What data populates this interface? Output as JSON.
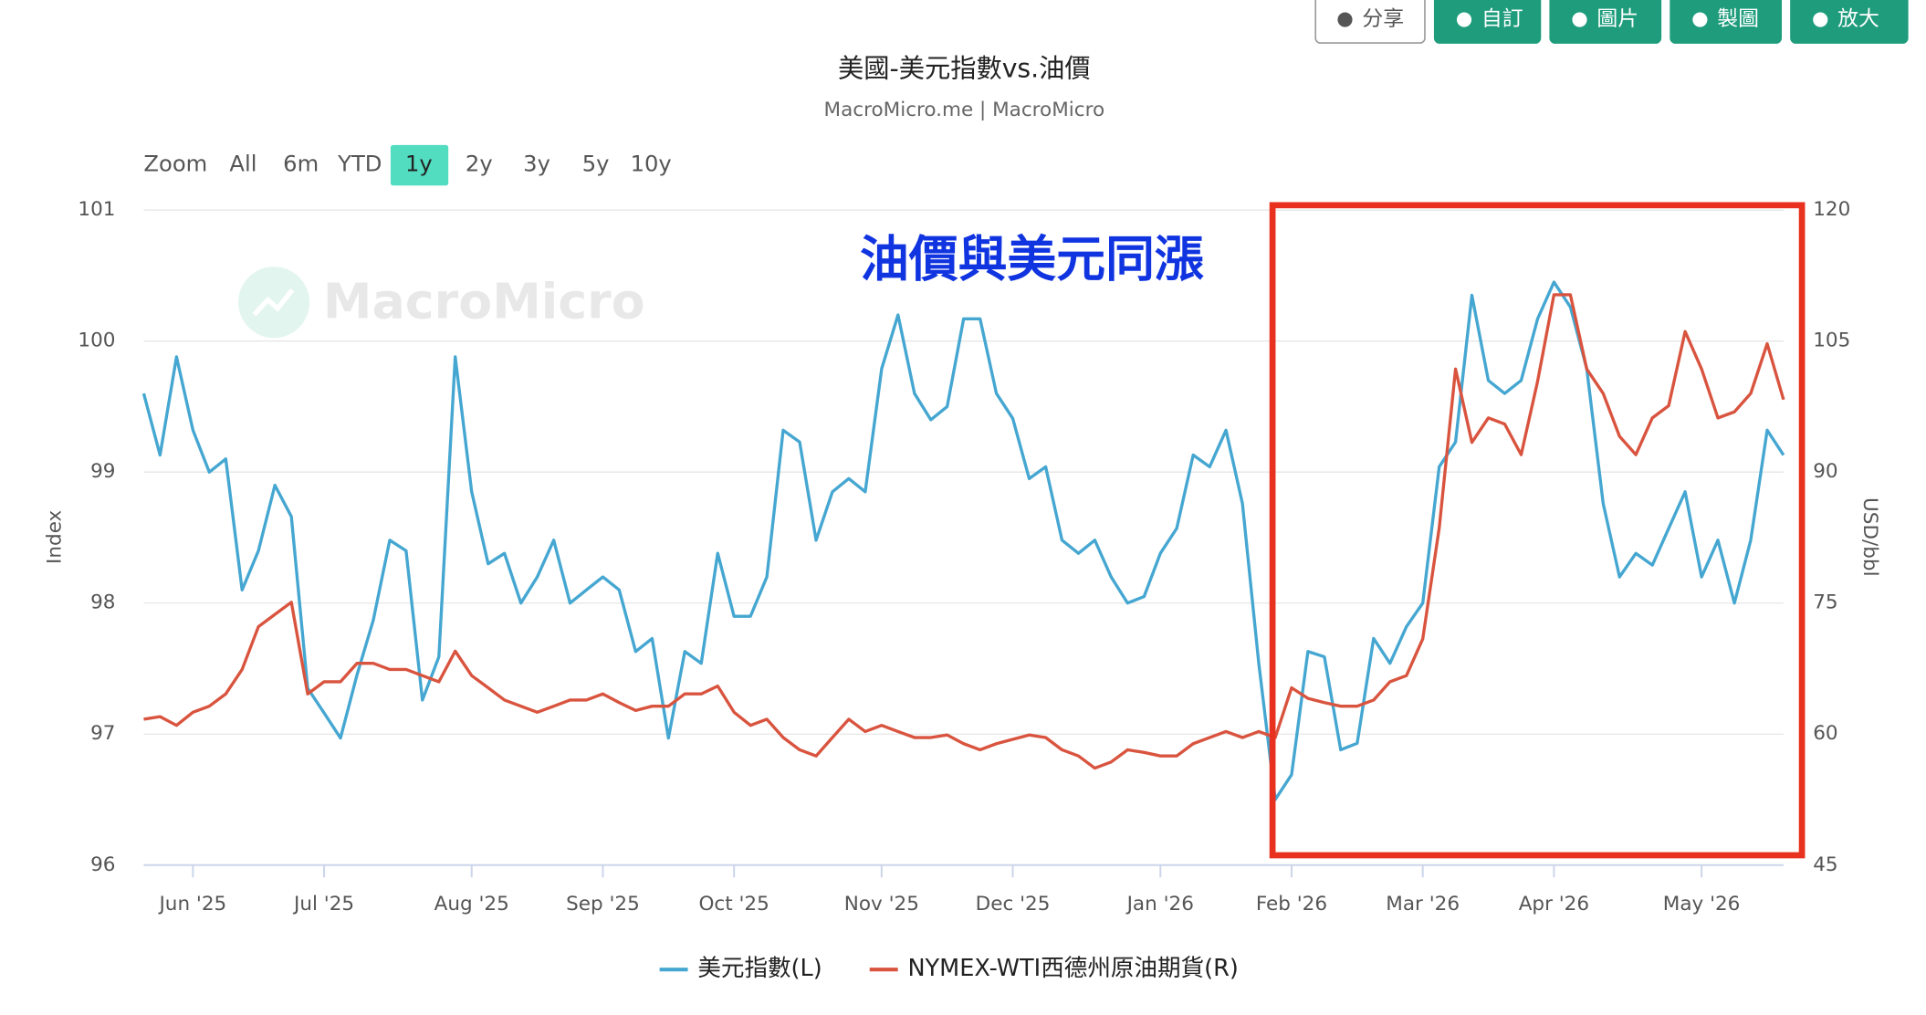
{
  "toolbar": {
    "buttons": [
      "分享",
      "自訂",
      "圖片",
      "製圖",
      "放大"
    ]
  },
  "range_selector": {
    "label": "Zoom",
    "options": [
      "All",
      "6m",
      "YTD",
      "1y",
      "2y",
      "3y",
      "5y",
      "10y"
    ],
    "selected": 3
  },
  "chart_data": {
    "type": "line",
    "title": "美國-美元指數vs.油價",
    "subtitle": "MacroMicro.me | MacroMicro",
    "watermark": "MacroMicro",
    "annotation": "油價與美元同漲",
    "ylabel": "Index",
    "y2label": "USD/bbl",
    "ylim": [
      96,
      101
    ],
    "yticks": [
      96,
      97,
      98,
      99,
      100,
      101
    ],
    "y2lim": [
      45,
      120
    ],
    "y2ticks": [
      45,
      60,
      75,
      90,
      105,
      120
    ],
    "grid": true,
    "legend": "bottom",
    "x": [
      null,
      null,
      null,
      "Jun '25",
      null,
      null,
      null,
      null,
      null,
      null,
      null,
      "Jul '25",
      null,
      null,
      null,
      null,
      null,
      null,
      null,
      null,
      "Aug '25",
      null,
      null,
      null,
      null,
      null,
      null,
      null,
      "Sep '25",
      null,
      null,
      null,
      null,
      null,
      null,
      null,
      "Oct '25",
      null,
      null,
      null,
      null,
      null,
      null,
      null,
      null,
      "Nov '25",
      null,
      null,
      null,
      null,
      null,
      null,
      null,
      "Dec '25",
      null,
      null,
      null,
      null,
      null,
      null,
      null,
      null,
      "Jan '26",
      null,
      null,
      null,
      null,
      null,
      null,
      null,
      "Feb '26",
      null,
      null,
      null,
      null,
      null,
      null,
      null,
      "Mar '26",
      null,
      null,
      null,
      null,
      null,
      null,
      null,
      "Apr '26",
      null,
      null,
      null,
      null,
      null,
      null,
      null,
      null,
      "May '26",
      null,
      null,
      null,
      null,
      null
    ],
    "series": [
      {
        "name": "美元指數(L)",
        "color": "#45a7d1",
        "axis": "y",
        "values": [
          99.6,
          99.13,
          99.88,
          99.32,
          99.0,
          99.1,
          98.1,
          98.4,
          98.9,
          98.66,
          97.35,
          97.16,
          96.97,
          97.45,
          97.87,
          98.48,
          98.4,
          97.26,
          97.59,
          99.88,
          98.85,
          98.3,
          98.38,
          98.0,
          98.2,
          98.48,
          98.0,
          98.1,
          98.2,
          98.1,
          97.63,
          97.73,
          96.97,
          97.63,
          97.54,
          98.38,
          97.9,
          97.9,
          98.2,
          99.32,
          99.23,
          98.48,
          98.85,
          98.95,
          98.85,
          99.79,
          100.2,
          99.6,
          99.4,
          99.5,
          100.17,
          100.17,
          99.6,
          99.41,
          98.95,
          99.04,
          98.48,
          98.38,
          98.48,
          98.2,
          98.0,
          98.05,
          98.38,
          98.57,
          99.13,
          99.04,
          99.32,
          98.76,
          97.54,
          96.5,
          96.69,
          97.63,
          97.59,
          96.88,
          96.93,
          97.73,
          97.54,
          97.82,
          98.0,
          99.04,
          99.23,
          100.35,
          99.7,
          99.6,
          99.7,
          100.17,
          100.45,
          100.26,
          99.79,
          98.76,
          98.2,
          98.38,
          98.29,
          98.57,
          98.85,
          98.2,
          98.48,
          98.0,
          98.48,
          99.32,
          99.13
        ]
      },
      {
        "name": "NYMEX-WTI西德州原油期貨(R)",
        "color": "#d9543f",
        "axis": "y2",
        "values": [
          61.7,
          62.0,
          61.0,
          62.5,
          63.2,
          64.6,
          67.4,
          72.3,
          73.7,
          75.1,
          64.6,
          66.0,
          66.0,
          68.1,
          68.1,
          67.4,
          67.4,
          66.7,
          66.0,
          69.5,
          66.7,
          65.3,
          63.9,
          63.2,
          62.5,
          63.2,
          63.9,
          63.9,
          64.6,
          63.6,
          62.7,
          63.2,
          63.2,
          64.6,
          64.6,
          65.5,
          62.5,
          61.0,
          61.7,
          59.6,
          58.2,
          57.5,
          59.6,
          61.7,
          60.3,
          61.0,
          60.3,
          59.6,
          59.6,
          59.9,
          58.9,
          58.2,
          58.9,
          59.4,
          59.9,
          59.6,
          58.2,
          57.5,
          56.1,
          56.8,
          58.2,
          57.9,
          57.5,
          57.5,
          58.9,
          59.6,
          60.3,
          59.6,
          60.3,
          59.6,
          65.3,
          64.1,
          63.6,
          63.2,
          63.2,
          63.9,
          66.0,
          66.7,
          70.9,
          83.6,
          101.8,
          93.4,
          96.2,
          95.5,
          92.0,
          100.4,
          110.3,
          110.3,
          101.8,
          99.0,
          94.1,
          92.0,
          96.2,
          97.6,
          106.1,
          101.8,
          96.2,
          96.9,
          99.0,
          104.7,
          98.3
        ]
      }
    ]
  }
}
